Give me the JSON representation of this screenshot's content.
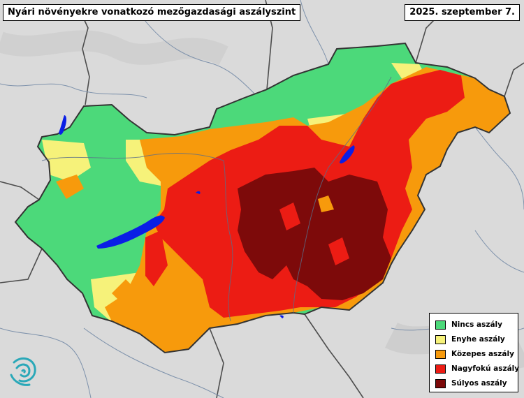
{
  "map": {
    "title": "Nyári növényekre vonatkozó mezőgazdasági aszályszint",
    "date": "2025. szeptember 7.",
    "colors": {
      "background_land": "#d7d7d7",
      "border": "#555555",
      "river": "#7a8ea8",
      "lake": "#0a1ee6"
    }
  },
  "legend": {
    "items": [
      {
        "label": "Nincs aszály",
        "color": "#4cd97a"
      },
      {
        "label": "Enyhe aszály",
        "color": "#f6f27a"
      },
      {
        "label": "Közepes aszály",
        "color": "#f79a0c"
      },
      {
        "label": "Nagyfokú aszály",
        "color": "#ec1c14"
      },
      {
        "label": "Súlyos aszály",
        "color": "#7d0a0a"
      }
    ]
  },
  "logo": {
    "icon": "wave-spiral-logo-icon",
    "color": "#2aa8b8"
  }
}
